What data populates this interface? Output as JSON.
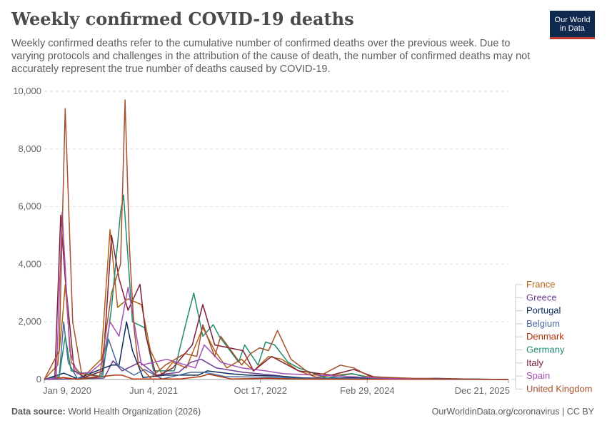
{
  "header": {
    "title": "Weekly confirmed COVID-19 deaths",
    "subtitle": "Weekly confirmed deaths refer to the cumulative number of confirmed deaths over the previous week. Due to varying protocols and challenges in the attribution of the cause of death, the number of confirmed deaths may not accurately represent the true number of deaths caused by COVID-19.",
    "logo_line1": "Our World",
    "logo_line2": "in Data"
  },
  "footer": {
    "source_label": "Data source:",
    "source_text": "World Health Organization (2026)",
    "link": "OurWorldinData.org/coronavirus | CC BY"
  },
  "chart_data": {
    "type": "line",
    "ylim": [
      0,
      10000
    ],
    "yticks": [
      0,
      2000,
      4000,
      6000,
      8000,
      10000
    ],
    "ytick_labels": [
      "0",
      "2,000",
      "4,000",
      "6,000",
      "8,000",
      "10,000"
    ],
    "xlim": [
      "2020-01-09",
      "2025-12-21"
    ],
    "xticks": [
      "2020-01-09",
      "2021-06-04",
      "2022-10-17",
      "2024-02-29",
      "2025-12-21"
    ],
    "xtick_labels": [
      "Jan 9, 2020",
      "Jun 4, 2021",
      "Oct 17, 2022",
      "Feb 29, 2024",
      "Dec 21, 2025"
    ],
    "grid": true,
    "legend": "right",
    "series": [
      {
        "name": "France",
        "color": "#b16214",
        "x": [
          "2020-01-09",
          "2020-03-12",
          "2020-04-02",
          "2020-04-16",
          "2020-05-14",
          "2020-07-09",
          "2020-10-01",
          "2020-11-12",
          "2020-12-17",
          "2021-02-04",
          "2021-04-08",
          "2021-05-20",
          "2021-07-15",
          "2021-09-02",
          "2021-11-04",
          "2022-01-20",
          "2022-03-17",
          "2022-05-12",
          "2022-07-21",
          "2022-09-15",
          "2022-11-24",
          "2023-01-26",
          "2023-04-13",
          "2023-07-06",
          "2023-12-14",
          "2024-03-28",
          "2024-09-26",
          "2025-06-26",
          "2025-12-21"
        ],
        "y": [
          0,
          500,
          2000,
          3300,
          600,
          80,
          700,
          5200,
          2500,
          2800,
          2600,
          1000,
          150,
          600,
          400,
          1800,
          1000,
          400,
          700,
          300,
          800,
          700,
          300,
          80,
          200,
          60,
          20,
          5,
          0
        ]
      },
      {
        "name": "Greece",
        "color": "#6d3e91",
        "x": [
          "2020-01-09",
          "2020-10-15",
          "2020-11-26",
          "2021-01-07",
          "2021-04-01",
          "2021-06-17",
          "2021-09-30",
          "2021-11-25",
          "2022-01-13",
          "2022-03-24",
          "2022-07-28",
          "2022-12-15",
          "2023-03-30",
          "2023-12-07",
          "2024-06-27",
          "2025-12-21"
        ],
        "y": [
          0,
          50,
          650,
          300,
          600,
          150,
          250,
          600,
          700,
          400,
          250,
          150,
          60,
          40,
          20,
          0
        ]
      },
      {
        "name": "Portugal",
        "color": "#0b2c5b",
        "x": [
          "2020-01-09",
          "2020-04-09",
          "2020-06-11",
          "2020-11-19",
          "2020-12-24",
          "2021-01-28",
          "2021-02-25",
          "2021-04-15",
          "2021-07-29",
          "2021-12-30",
          "2022-02-10",
          "2022-05-26",
          "2022-08-18",
          "2023-01-12",
          "2023-06-15",
          "2023-12-14",
          "2024-06-13",
          "2025-01-16",
          "2025-06-19",
          "2025-12-21"
        ],
        "y": [
          0,
          220,
          30,
          500,
          500,
          2000,
          1000,
          70,
          150,
          150,
          300,
          200,
          150,
          120,
          30,
          60,
          20,
          40,
          15,
          0
        ]
      },
      {
        "name": "Belgium",
        "color": "#4c6a9c",
        "x": [
          "2020-01-09",
          "2020-03-19",
          "2020-04-09",
          "2020-04-30",
          "2020-06-11",
          "2020-10-01",
          "2020-11-05",
          "2020-12-17",
          "2021-03-04",
          "2021-04-22",
          "2021-07-15",
          "2021-11-25",
          "2022-01-27",
          "2022-05-05",
          "2022-11-03",
          "2023-04-13",
          "2023-12-14",
          "2024-06-13",
          "2025-12-21"
        ],
        "y": [
          0,
          100,
          2000,
          600,
          40,
          100,
          1400,
          500,
          150,
          350,
          20,
          250,
          250,
          100,
          80,
          40,
          30,
          10,
          0
        ]
      },
      {
        "name": "Denmark",
        "color": "#b13507",
        "x": [
          "2020-01-09",
          "2020-04-09",
          "2020-06-11",
          "2020-12-03",
          "2021-01-07",
          "2021-02-25",
          "2021-10-07",
          "2022-01-06",
          "2022-02-17",
          "2022-06-02",
          "2022-12-01",
          "2023-03-02",
          "2023-12-14",
          "2024-06-13",
          "2025-12-21"
        ],
        "y": [
          0,
          70,
          5,
          150,
          150,
          20,
          20,
          100,
          180,
          20,
          40,
          20,
          10,
          5,
          0
        ]
      },
      {
        "name": "Germany",
        "color": "#228a71",
        "x": [
          "2020-01-09",
          "2020-03-19",
          "2020-04-16",
          "2020-05-14",
          "2020-10-08",
          "2020-11-19",
          "2020-12-31",
          "2021-01-14",
          "2021-02-25",
          "2021-04-22",
          "2021-06-03",
          "2021-09-09",
          "2021-11-04",
          "2021-12-09",
          "2022-01-20",
          "2022-03-10",
          "2022-04-07",
          "2022-07-07",
          "2022-08-04",
          "2022-10-06",
          "2022-11-10",
          "2022-12-22",
          "2023-02-23",
          "2023-04-13",
          "2023-08-24",
          "2023-12-21",
          "2024-03-14",
          "2024-10-10",
          "2025-04-10",
          "2025-12-21"
        ],
        "y": [
          0,
          100,
          1500,
          300,
          100,
          2500,
          5800,
          6400,
          2000,
          1800,
          300,
          300,
          2000,
          3000,
          1500,
          1900,
          1500,
          600,
          1200,
          500,
          1300,
          1200,
          600,
          400,
          50,
          200,
          60,
          30,
          15,
          0
        ]
      },
      {
        "name": "Italy",
        "color": "#7e1f37",
        "x": [
          "2020-01-09",
          "2020-02-27",
          "2020-03-26",
          "2020-04-16",
          "2020-05-28",
          "2020-07-16",
          "2020-10-08",
          "2020-11-19",
          "2020-12-24",
          "2021-02-04",
          "2021-04-01",
          "2021-04-29",
          "2021-06-17",
          "2021-09-02",
          "2021-12-02",
          "2022-01-20",
          "2022-03-17",
          "2022-07-28",
          "2022-09-15",
          "2022-12-08",
          "2023-04-13",
          "2023-09-14",
          "2023-12-28",
          "2024-03-28",
          "2024-07-25",
          "2025-12-21"
        ],
        "y": [
          0,
          30,
          5700,
          3500,
          300,
          80,
          300,
          5000,
          3500,
          2400,
          3300,
          1500,
          100,
          400,
          1200,
          2600,
          1200,
          1000,
          300,
          800,
          300,
          150,
          350,
          100,
          40,
          0
        ]
      },
      {
        "name": "Spain",
        "color": "#a450b4",
        "x": [
          "2020-01-09",
          "2020-03-05",
          "2020-04-02",
          "2020-05-07",
          "2020-06-11",
          "2020-08-13",
          "2020-10-08",
          "2020-11-12",
          "2020-12-24",
          "2021-02-04",
          "2021-04-08",
          "2021-08-05",
          "2021-12-16",
          "2022-01-27",
          "2022-04-14",
          "2022-07-21",
          "2022-11-10",
          "2023-02-02",
          "2023-12-14",
          "2024-06-13",
          "2025-12-21"
        ],
        "y": [
          0,
          50,
          5800,
          1000,
          200,
          250,
          600,
          2000,
          1500,
          3200,
          500,
          700,
          400,
          1200,
          600,
          400,
          300,
          200,
          100,
          30,
          0
        ]
      },
      {
        "name": "United Kingdom",
        "color": "#a4522d",
        "x": [
          "2020-01-09",
          "2020-03-19",
          "2020-04-16",
          "2020-05-21",
          "2020-07-02",
          "2020-09-24",
          "2020-11-19",
          "2020-12-31",
          "2021-01-21",
          "2021-02-11",
          "2021-03-04",
          "2021-03-25",
          "2021-05-20",
          "2021-07-29",
          "2021-10-28",
          "2021-12-23",
          "2022-01-20",
          "2022-03-17",
          "2022-04-14",
          "2022-07-21",
          "2022-09-01",
          "2022-10-13",
          "2022-11-24",
          "2023-01-05",
          "2023-03-09",
          "2023-06-15",
          "2023-08-10",
          "2023-10-26",
          "2023-12-28",
          "2024-03-14",
          "2024-09-26",
          "2025-06-26",
          "2025-12-21"
        ],
        "y": [
          0,
          1000,
          9400,
          2000,
          200,
          100,
          3000,
          4000,
          9700,
          4500,
          1800,
          500,
          60,
          500,
          900,
          800,
          1900,
          800,
          1500,
          500,
          900,
          1100,
          1000,
          1700,
          700,
          150,
          200,
          500,
          400,
          100,
          40,
          10,
          0
        ]
      }
    ]
  }
}
